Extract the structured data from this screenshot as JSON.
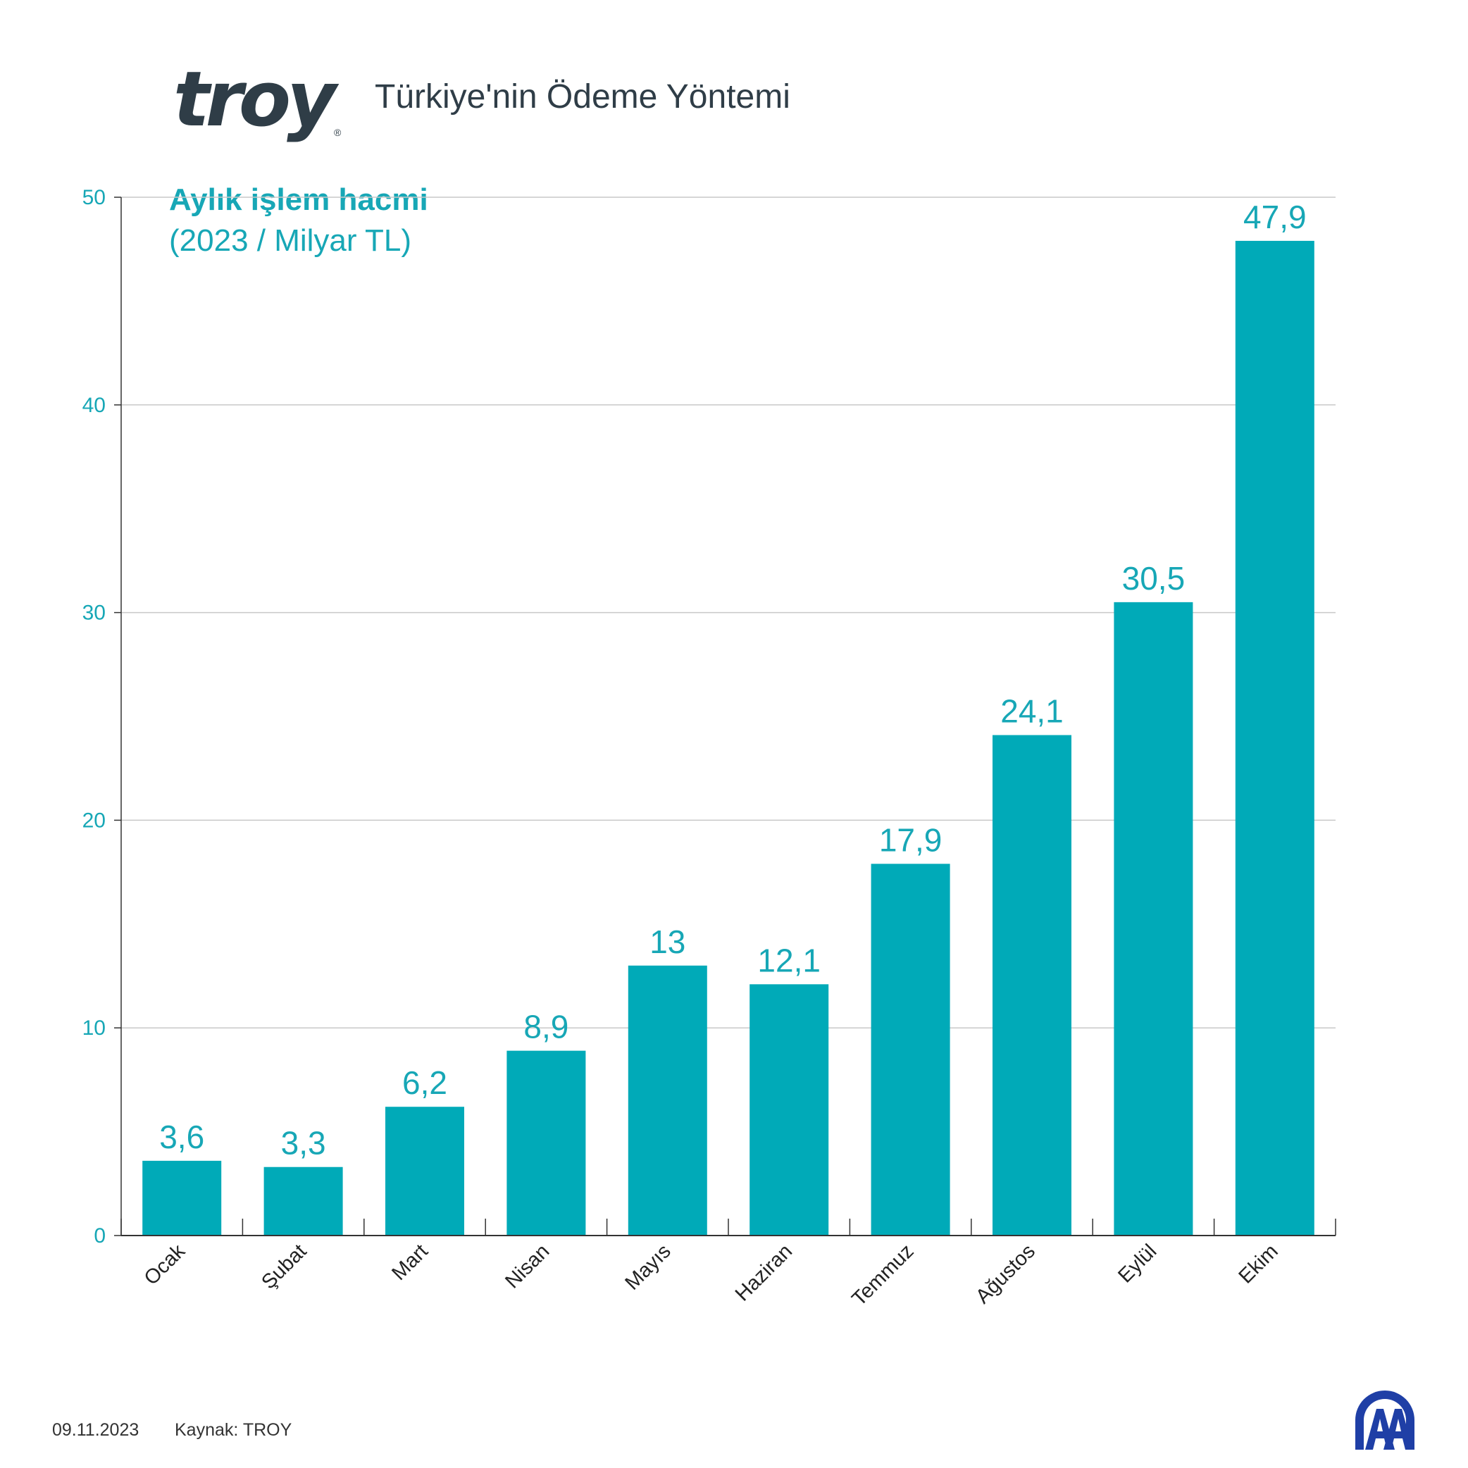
{
  "header": {
    "logo_text": "troy",
    "logo_registered": "®",
    "title": "Türkiye'nin Ödeme Yöntemi"
  },
  "colors": {
    "bar": "#00aab8",
    "accent_text": "#17a7b6",
    "title_text": "#2f3d47",
    "grid": "#c8c8c8",
    "axis": "#333333"
  },
  "chart_data": {
    "type": "bar",
    "title": "Aylık işlem hacmi",
    "subtitle": "(2023 / Milyar TL)",
    "categories": [
      "Ocak",
      "Şubat",
      "Mart",
      "Nisan",
      "Mayıs",
      "Haziran",
      "Temmuz",
      "Ağustos",
      "Eylül",
      "Ekim"
    ],
    "values": [
      3.6,
      3.3,
      6.2,
      8.9,
      13,
      12.1,
      17.9,
      24.1,
      30.5,
      47.9
    ],
    "value_labels": [
      "3,6",
      "3,3",
      "6,2",
      "8,9",
      "13",
      "12,1",
      "17,9",
      "24,1",
      "30,5",
      "47,9"
    ],
    "ylim": [
      0,
      50
    ],
    "yticks": [
      0,
      10,
      20,
      30,
      40,
      50
    ],
    "grid": true,
    "xlabel": "",
    "ylabel": ""
  },
  "footer": {
    "date": "09.11.2023",
    "source": "Kaynak: TROY",
    "agency_logo": "AA"
  }
}
